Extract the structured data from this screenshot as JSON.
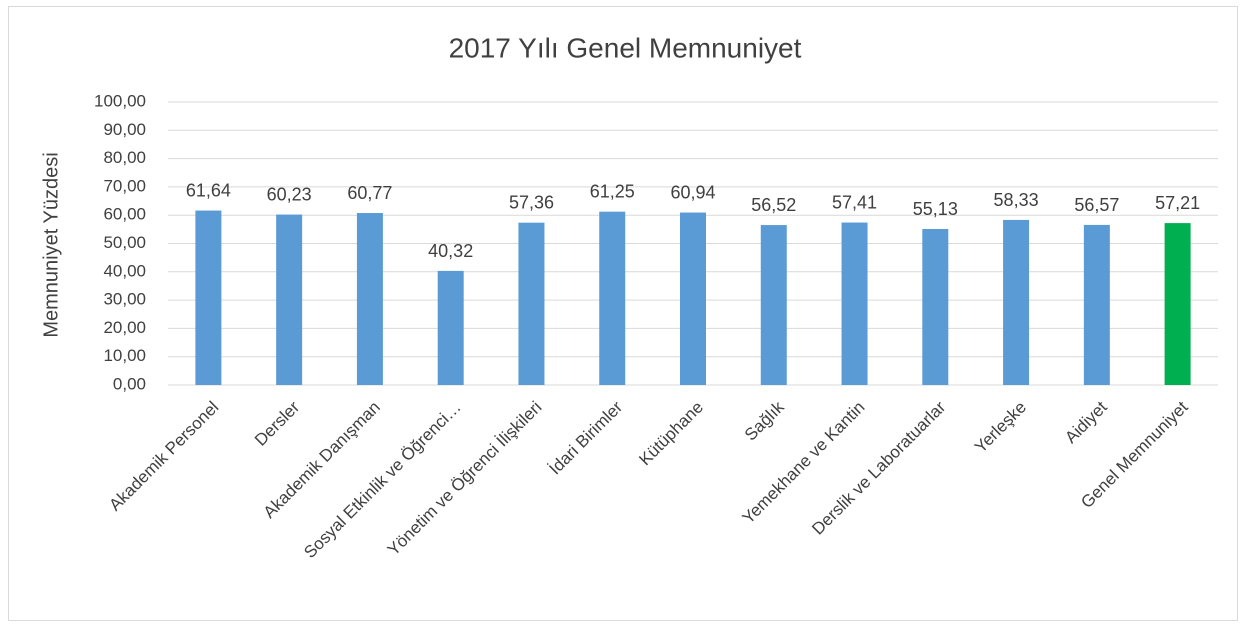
{
  "chart_data": {
    "type": "bar",
    "title": "2017 Yılı Genel Memnuniyet",
    "y_label": "Memnuniyet Yüzdesi",
    "categories": [
      "Akademik Personel",
      "Dersler",
      "Akademik Danışman",
      "Sosyal Etkinlik ve Öğrenci…",
      "Yönetim ve Öğrenci İlişkileri",
      "İdari Birimler",
      "Kütüphane",
      "Sağlık",
      "Yemekhane ve Kantin",
      "Derslik ve Laboratuarlar",
      "Yerleşke",
      "Aidiyet",
      "Genel Memnuniyet"
    ],
    "values": [
      61.64,
      60.23,
      60.77,
      40.32,
      57.36,
      61.25,
      60.94,
      56.52,
      57.41,
      55.13,
      58.33,
      56.57,
      57.21
    ],
    "value_labels": [
      "61,64",
      "60,23",
      "60,77",
      "40,32",
      "57,36",
      "61,25",
      "60,94",
      "56,52",
      "57,41",
      "55,13",
      "58,33",
      "56,57",
      "57,21"
    ],
    "colors": [
      "#5b9bd5",
      "#5b9bd5",
      "#5b9bd5",
      "#5b9bd5",
      "#5b9bd5",
      "#5b9bd5",
      "#5b9bd5",
      "#5b9bd5",
      "#5b9bd5",
      "#5b9bd5",
      "#5b9bd5",
      "#5b9bd5",
      "#00b050"
    ],
    "ylim": [
      0,
      100
    ],
    "yticks": [
      {
        "value": 0,
        "label": "0,00"
      },
      {
        "value": 10,
        "label": "10,00"
      },
      {
        "value": 20,
        "label": "20,00"
      },
      {
        "value": 30,
        "label": "30,00"
      },
      {
        "value": 40,
        "label": "40,00"
      },
      {
        "value": 50,
        "label": "50,00"
      },
      {
        "value": 60,
        "label": "60,00"
      },
      {
        "value": 70,
        "label": "70,00"
      },
      {
        "value": 80,
        "label": "80,00"
      },
      {
        "value": 90,
        "label": "90,00"
      },
      {
        "value": 100,
        "label": "100,00"
      }
    ],
    "grid": true
  }
}
